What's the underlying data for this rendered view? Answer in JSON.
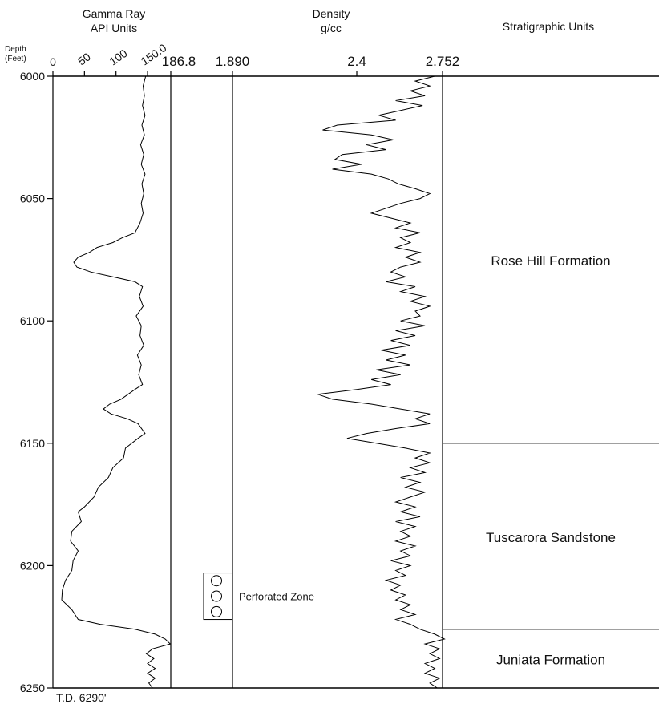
{
  "chart_data": {
    "type": "line",
    "depth_axis": {
      "label_line1": "Depth",
      "label_line2": "(Feet)",
      "range": [
        6000,
        6250
      ],
      "ticks": [
        "6000",
        "6050",
        "6100",
        "6150",
        "6200",
        "6250"
      ],
      "tick_values": [
        6000,
        6050,
        6100,
        6150,
        6200,
        6250
      ],
      "footer": "T.D. 6290'"
    },
    "gamma_ray": {
      "title_line1": "Gamma Ray",
      "title_line2": "API Units",
      "range": [
        0,
        186.8
      ],
      "ticks": [
        "0",
        "50",
        "100",
        "150.0",
        "186.8"
      ],
      "tick_values": [
        0,
        50,
        100,
        150,
        186.8
      ],
      "points": [
        [
          6000,
          147
        ],
        [
          6004,
          143
        ],
        [
          6008,
          145
        ],
        [
          6012,
          142
        ],
        [
          6016,
          146
        ],
        [
          6020,
          141
        ],
        [
          6024,
          145
        ],
        [
          6028,
          139
        ],
        [
          6032,
          144
        ],
        [
          6036,
          140
        ],
        [
          6040,
          146
        ],
        [
          6044,
          141
        ],
        [
          6048,
          144
        ],
        [
          6052,
          140
        ],
        [
          6056,
          143
        ],
        [
          6060,
          138
        ],
        [
          6064,
          130
        ],
        [
          6066,
          110
        ],
        [
          6068,
          95
        ],
        [
          6070,
          70
        ],
        [
          6072,
          58
        ],
        [
          6074,
          40
        ],
        [
          6076,
          33
        ],
        [
          6078,
          38
        ],
        [
          6080,
          60
        ],
        [
          6082,
          95
        ],
        [
          6084,
          130
        ],
        [
          6086,
          142
        ],
        [
          6090,
          137
        ],
        [
          6094,
          143
        ],
        [
          6098,
          132
        ],
        [
          6102,
          140
        ],
        [
          6106,
          138
        ],
        [
          6110,
          144
        ],
        [
          6114,
          134
        ],
        [
          6118,
          140
        ],
        [
          6122,
          136
        ],
        [
          6126,
          142
        ],
        [
          6128,
          130
        ],
        [
          6132,
          108
        ],
        [
          6134,
          90
        ],
        [
          6136,
          80
        ],
        [
          6138,
          92
        ],
        [
          6140,
          118
        ],
        [
          6142,
          135
        ],
        [
          6146,
          146
        ],
        [
          6148,
          135
        ],
        [
          6152,
          115
        ],
        [
          6156,
          112
        ],
        [
          6160,
          95
        ],
        [
          6164,
          88
        ],
        [
          6168,
          72
        ],
        [
          6172,
          65
        ],
        [
          6176,
          50
        ],
        [
          6178,
          40
        ],
        [
          6182,
          45
        ],
        [
          6186,
          30
        ],
        [
          6190,
          28
        ],
        [
          6194,
          40
        ],
        [
          6198,
          32
        ],
        [
          6202,
          30
        ],
        [
          6206,
          20
        ],
        [
          6210,
          15
        ],
        [
          6214,
          14
        ],
        [
          6218,
          30
        ],
        [
          6222,
          40
        ],
        [
          6224,
          75
        ],
        [
          6226,
          130
        ],
        [
          6228,
          162
        ],
        [
          6230,
          178
        ],
        [
          6232,
          186
        ],
        [
          6234,
          158
        ],
        [
          6236,
          148
        ],
        [
          6238,
          160
        ],
        [
          6240,
          150
        ],
        [
          6242,
          162
        ],
        [
          6244,
          150
        ],
        [
          6246,
          162
        ],
        [
          6248,
          152
        ],
        [
          6250,
          158
        ]
      ]
    },
    "density": {
      "title_line1": "Density",
      "title_line2": "g/cc",
      "range": [
        1.89,
        2.752
      ],
      "ticks": [
        "1.890",
        "2.4",
        "2.752"
      ],
      "tick_values": [
        1.89,
        2.4,
        2.752
      ],
      "points": [
        [
          6000,
          2.72
        ],
        [
          6002,
          2.64
        ],
        [
          6004,
          2.7
        ],
        [
          6006,
          2.62
        ],
        [
          6008,
          2.68
        ],
        [
          6010,
          2.56
        ],
        [
          6012,
          2.67
        ],
        [
          6014,
          2.58
        ],
        [
          6016,
          2.49
        ],
        [
          6018,
          2.56
        ],
        [
          6020,
          2.32
        ],
        [
          6022,
          2.26
        ],
        [
          6024,
          2.46
        ],
        [
          6026,
          2.55
        ],
        [
          6028,
          2.44
        ],
        [
          6030,
          2.52
        ],
        [
          6032,
          2.34
        ],
        [
          6034,
          2.31
        ],
        [
          6036,
          2.42
        ],
        [
          6038,
          2.3
        ],
        [
          6040,
          2.46
        ],
        [
          6042,
          2.53
        ],
        [
          6044,
          2.57
        ],
        [
          6046,
          2.64
        ],
        [
          6048,
          2.7
        ],
        [
          6050,
          2.66
        ],
        [
          6052,
          2.58
        ],
        [
          6054,
          2.52
        ],
        [
          6056,
          2.46
        ],
        [
          6058,
          2.54
        ],
        [
          6060,
          2.62
        ],
        [
          6062,
          2.56
        ],
        [
          6064,
          2.66
        ],
        [
          6066,
          2.58
        ],
        [
          6068,
          2.62
        ],
        [
          6070,
          2.56
        ],
        [
          6072,
          2.66
        ],
        [
          6074,
          2.6
        ],
        [
          6076,
          2.66
        ],
        [
          6078,
          2.58
        ],
        [
          6080,
          2.54
        ],
        [
          6082,
          2.6
        ],
        [
          6084,
          2.52
        ],
        [
          6086,
          2.64
        ],
        [
          6088,
          2.58
        ],
        [
          6090,
          2.68
        ],
        [
          6092,
          2.62
        ],
        [
          6094,
          2.7
        ],
        [
          6096,
          2.64
        ],
        [
          6098,
          2.66
        ],
        [
          6100,
          2.58
        ],
        [
          6102,
          2.68
        ],
        [
          6104,
          2.56
        ],
        [
          6106,
          2.64
        ],
        [
          6108,
          2.54
        ],
        [
          6110,
          2.62
        ],
        [
          6112,
          2.5
        ],
        [
          6114,
          2.6
        ],
        [
          6116,
          2.52
        ],
        [
          6118,
          2.62
        ],
        [
          6120,
          2.48
        ],
        [
          6122,
          2.58
        ],
        [
          6124,
          2.46
        ],
        [
          6126,
          2.54
        ],
        [
          6128,
          2.4
        ],
        [
          6130,
          2.24
        ],
        [
          6132,
          2.3
        ],
        [
          6134,
          2.46
        ],
        [
          6136,
          2.58
        ],
        [
          6138,
          2.7
        ],
        [
          6140,
          2.64
        ],
        [
          6142,
          2.7
        ],
        [
          6144,
          2.56
        ],
        [
          6146,
          2.44
        ],
        [
          6148,
          2.36
        ],
        [
          6150,
          2.48
        ],
        [
          6152,
          2.6
        ],
        [
          6154,
          2.7
        ],
        [
          6156,
          2.64
        ],
        [
          6158,
          2.7
        ],
        [
          6160,
          2.62
        ],
        [
          6162,
          2.68
        ],
        [
          6164,
          2.58
        ],
        [
          6166,
          2.66
        ],
        [
          6168,
          2.6
        ],
        [
          6170,
          2.68
        ],
        [
          6172,
          2.62
        ],
        [
          6174,
          2.56
        ],
        [
          6176,
          2.64
        ],
        [
          6178,
          2.58
        ],
        [
          6180,
          2.66
        ],
        [
          6182,
          2.56
        ],
        [
          6184,
          2.64
        ],
        [
          6186,
          2.58
        ],
        [
          6188,
          2.62
        ],
        [
          6190,
          2.56
        ],
        [
          6192,
          2.64
        ],
        [
          6194,
          2.58
        ],
        [
          6196,
          2.62
        ],
        [
          6198,
          2.54
        ],
        [
          6200,
          2.62
        ],
        [
          6202,
          2.56
        ],
        [
          6204,
          2.6
        ],
        [
          6206,
          2.52
        ],
        [
          6208,
          2.58
        ],
        [
          6210,
          2.54
        ],
        [
          6212,
          2.6
        ],
        [
          6214,
          2.56
        ],
        [
          6216,
          2.62
        ],
        [
          6218,
          2.58
        ],
        [
          6220,
          2.64
        ],
        [
          6222,
          2.56
        ],
        [
          6224,
          2.62
        ],
        [
          6226,
          2.66
        ],
        [
          6228,
          2.72
        ],
        [
          6230,
          2.76
        ],
        [
          6232,
          2.68
        ],
        [
          6234,
          2.74
        ],
        [
          6236,
          2.7
        ],
        [
          6238,
          2.74
        ],
        [
          6240,
          2.68
        ],
        [
          6242,
          2.72
        ],
        [
          6244,
          2.68
        ],
        [
          6246,
          2.74
        ],
        [
          6248,
          2.7
        ],
        [
          6250,
          2.73
        ]
      ]
    },
    "stratigraphic_units": {
      "title": "Stratigraphic Units",
      "units": [
        {
          "name": "Rose Hill Formation",
          "top": 6000,
          "base": 6150
        },
        {
          "name": "Tuscarora Sandstone",
          "top": 6150,
          "base": 6226
        },
        {
          "name": "Juniata Formation",
          "top": 6226,
          "base": 6250
        }
      ]
    },
    "perforated_zone": {
      "label": "Perforated Zone",
      "top": 6203,
      "base": 6222,
      "symbols": 3
    }
  }
}
